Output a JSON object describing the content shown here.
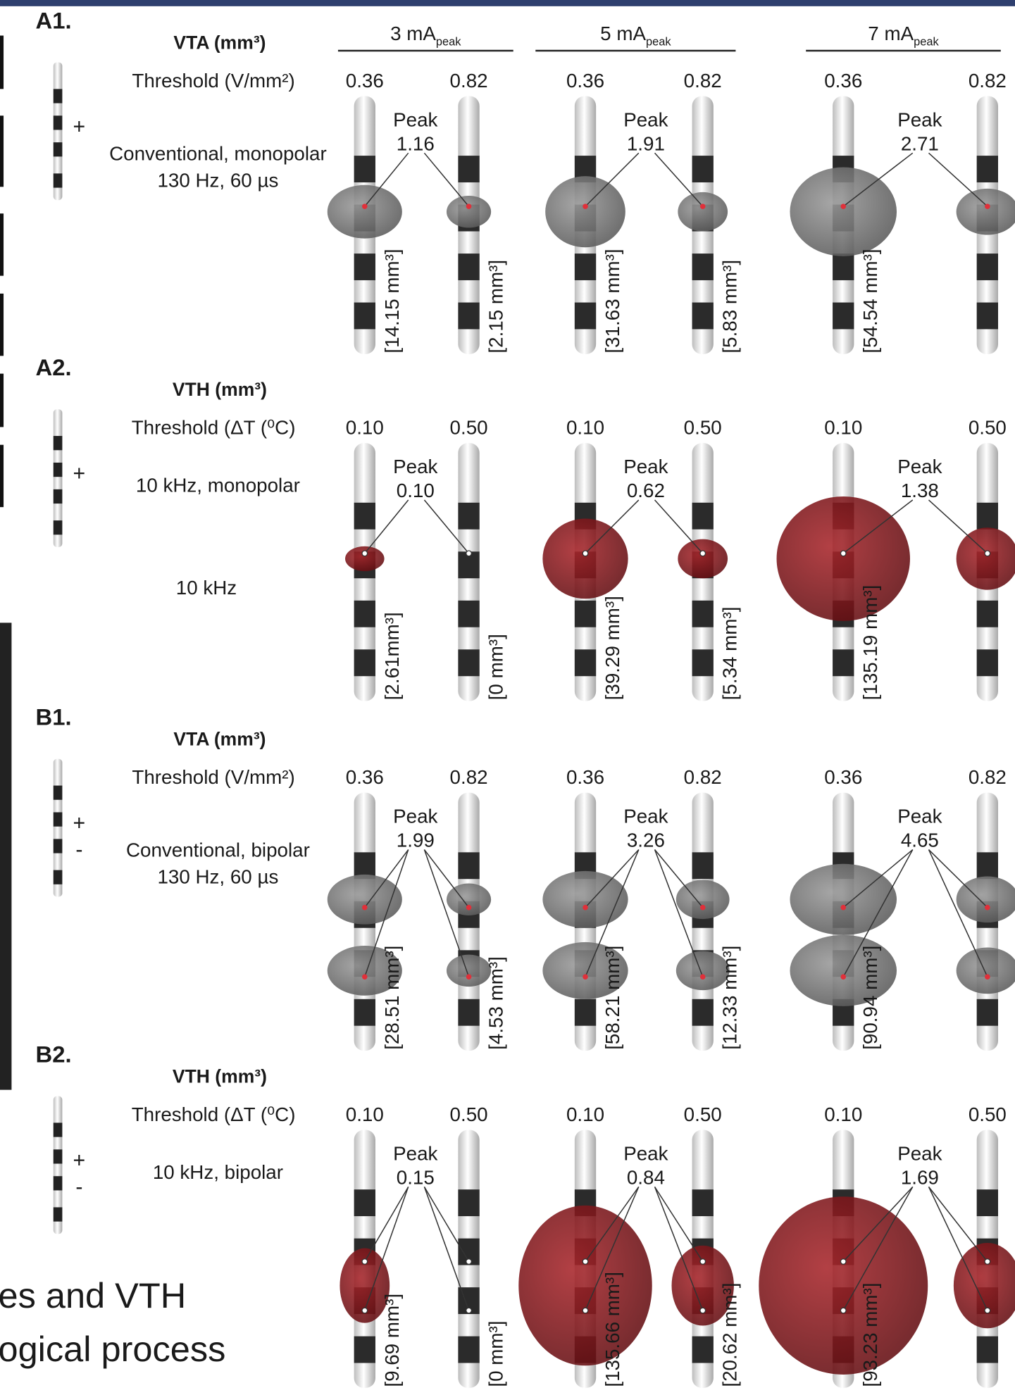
{
  "page": {
    "caption_lines": [
      "es and VTH",
      "ogical process"
    ]
  },
  "figure": {
    "columns": [
      {
        "label": "3 mA",
        "sub": "peak"
      },
      {
        "label": "5 mA",
        "sub": "peak"
      },
      {
        "label": "7 mA",
        "sub": "peak"
      }
    ],
    "peak_word": "Peak",
    "panels": [
      {
        "label": "A1.",
        "measure": "VTA (mm³)",
        "threshold_label": "Threshold (V/mm²)",
        "thresholds": [
          "0.36",
          "0.82"
        ],
        "mode": [
          "Conventional, monopolar",
          "130 Hz, 60 µs"
        ],
        "polarity": [
          "+"
        ],
        "peaks": [
          "1.16",
          "1.91",
          "2.71"
        ],
        "volumes": [
          "[14.15 mm³]",
          "[2.15 mm³]",
          "[31.63 mm³]",
          "[5.83 mm³]",
          "[54.54 mm³]"
        ]
      },
      {
        "label": "A2.",
        "measure": "VTH (mm³)",
        "threshold_label": "Threshold (ΔT (⁰C)",
        "thresholds": [
          "0.10",
          "0.50"
        ],
        "mode": [
          "10 kHz, monopolar"
        ],
        "extra": "10 kHz",
        "polarity": [
          "+"
        ],
        "peaks": [
          "0.10",
          "0.62",
          "1.38"
        ],
        "volumes": [
          "[2.61mm³]",
          "[0 mm³]",
          "[39.29 mm³]",
          "[5.34 mm³]",
          "[135.19 mm³]"
        ]
      },
      {
        "label": "B1.",
        "measure": "VTA (mm³)",
        "threshold_label": "Threshold (V/mm²)",
        "thresholds": [
          "0.36",
          "0.82"
        ],
        "mode": [
          "Conventional, bipolar",
          "130 Hz, 60 µs"
        ],
        "polarity": [
          "+",
          "-"
        ],
        "peaks": [
          "1.99",
          "3.26",
          "4.65"
        ],
        "volumes": [
          "[28.51 mm³]",
          "[4.53 mm³]",
          "[58.21 mm³]",
          "[12.33 mm³]",
          "[90.94 mm³]"
        ]
      },
      {
        "label": "B2.",
        "measure": "VTH (mm³)",
        "threshold_label": "Threshold (ΔT (⁰C)",
        "thresholds": [
          "0.10",
          "0.50"
        ],
        "mode": [
          "10 kHz, bipolar"
        ],
        "polarity": [
          "+",
          "-"
        ],
        "peaks": [
          "0.15",
          "0.84",
          "1.69"
        ],
        "volumes": [
          "[9.69 mm³]",
          "[0 mm³]",
          "[135.66 mm³]",
          "[20.62 mm³]",
          "[93.23 mm³]"
        ]
      }
    ]
  }
}
